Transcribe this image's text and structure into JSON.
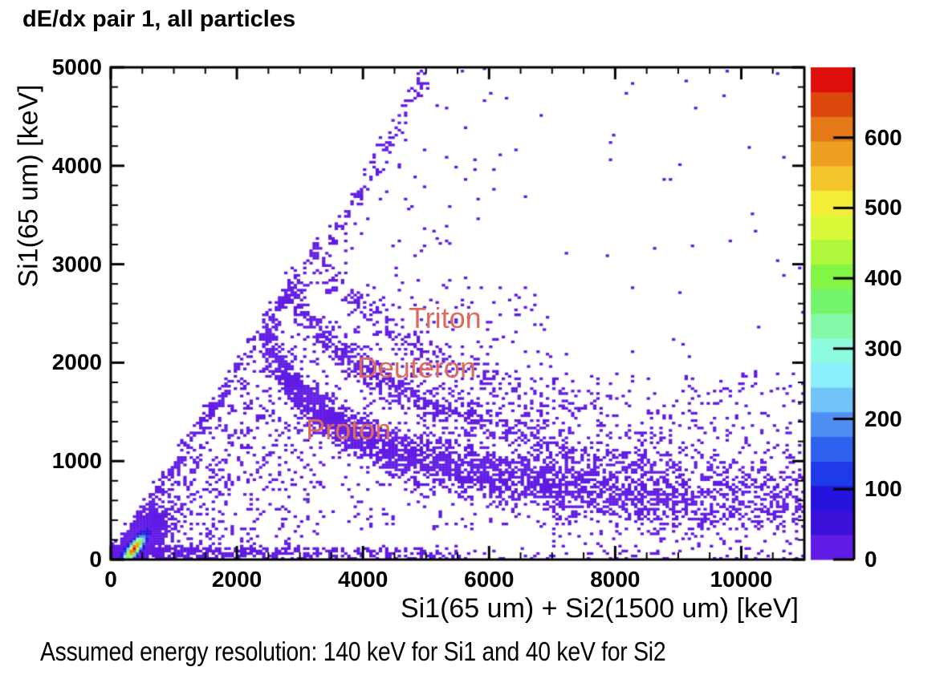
{
  "chart_data": {
    "type": "heatmap",
    "title": "dE/dx pair 1, all particles",
    "xlabel": "Si1(65 um) + Si2(1500 um) [keV]",
    "ylabel": "Si1(65 um) [keV]",
    "footnote": "Assumed energy resolution: 140 keV for Si1 and 40 keV for Si2",
    "xlim": [
      0,
      11000
    ],
    "ylim": [
      0,
      5000
    ],
    "zlim": [
      0,
      700
    ],
    "x_major_ticks": [
      0,
      2000,
      4000,
      6000,
      8000,
      10000
    ],
    "x_minor_step": 500,
    "y_major_ticks": [
      0,
      1000,
      2000,
      3000,
      4000,
      5000
    ],
    "y_minor_step": 200,
    "colorbar_ticks": [
      0,
      100,
      200,
      300,
      400,
      500,
      600
    ],
    "bin_kev": [
      50,
      25
    ],
    "grid": false,
    "legend_position": "right-colorbar",
    "palette": [
      "#601be4",
      "#3b10d9",
      "#2413dd",
      "#1f3ae8",
      "#2e62ee",
      "#4f8ef2",
      "#6fc3f7",
      "#8aeefb",
      "#8dfbdd",
      "#86f9a8",
      "#74f46a",
      "#83f544",
      "#aef73c",
      "#d9f838",
      "#f5ee38",
      "#f3c72c",
      "#eda021",
      "#e57917",
      "#dc470e",
      "#de0f0b"
    ],
    "annotation_color": "#dd6a5a",
    "annotations": [
      {
        "id": "triton",
        "label": "Triton",
        "x": 5300,
        "y": 2450
      },
      {
        "id": "deuteron",
        "label": "Deuteron",
        "x": 4850,
        "y": 1950
      },
      {
        "id": "proton",
        "label": "Proton",
        "x": 3770,
        "y": 1320
      }
    ],
    "bands": [
      {
        "name": "proton-locus",
        "n": 2700,
        "sigma": [
          110,
          170
        ],
        "xjitter": 45,
        "ridge": [
          [
            2450,
            2330
          ],
          [
            2650,
            2000
          ],
          [
            2900,
            1760
          ],
          [
            3200,
            1560
          ],
          [
            3600,
            1370
          ],
          [
            4000,
            1230
          ],
          [
            4500,
            1100
          ],
          [
            5000,
            1010
          ],
          [
            5500,
            940
          ],
          [
            6000,
            880
          ],
          [
            6500,
            825
          ],
          [
            7000,
            775
          ],
          [
            7500,
            725
          ],
          [
            8000,
            685
          ],
          [
            8500,
            650
          ],
          [
            9000,
            620
          ],
          [
            9500,
            595
          ],
          [
            10000,
            570
          ],
          [
            10500,
            550
          ],
          [
            11000,
            530
          ]
        ],
        "weights": [
          55,
          75,
          100,
          120,
          130,
          130,
          122,
          115,
          110,
          105,
          100,
          95,
          88,
          75,
          62,
          50,
          40,
          32,
          26
        ]
      },
      {
        "name": "deuteron-locus",
        "n": 800,
        "sigma": [
          95,
          150
        ],
        "xjitter": 45,
        "ridge": [
          [
            2850,
            2780
          ],
          [
            3100,
            2480
          ],
          [
            3450,
            2220
          ],
          [
            3850,
            2000
          ],
          [
            4300,
            1810
          ],
          [
            4800,
            1650
          ],
          [
            5400,
            1500
          ],
          [
            6000,
            1370
          ],
          [
            6700,
            1250
          ],
          [
            7400,
            1140
          ],
          [
            8100,
            1050
          ],
          [
            8800,
            975
          ],
          [
            9500,
            915
          ],
          [
            10200,
            865
          ],
          [
            11000,
            820
          ]
        ],
        "weights": [
          50,
          65,
          75,
          80,
          80,
          75,
          70,
          64,
          54,
          44,
          34,
          27,
          21,
          16
        ]
      },
      {
        "name": "triton-locus",
        "n": 340,
        "sigma": [
          100,
          160
        ],
        "xjitter": 45,
        "ridge": [
          [
            3250,
            3080
          ],
          [
            3600,
            2780
          ],
          [
            4000,
            2520
          ],
          [
            4500,
            2280
          ],
          [
            5000,
            2100
          ],
          [
            5600,
            1920
          ],
          [
            6300,
            1750
          ],
          [
            7000,
            1610
          ],
          [
            7800,
            1480
          ],
          [
            8600,
            1370
          ],
          [
            9500,
            1270
          ],
          [
            10300,
            1200
          ],
          [
            11000,
            1140
          ]
        ],
        "weights": [
          28,
          36,
          42,
          42,
          40,
          36,
          30,
          24,
          18,
          13,
          10,
          8
        ]
      },
      {
        "name": "stopped-in-si1-diagonal",
        "n": 340,
        "sigma": [
          55,
          55
        ],
        "xjitter": 40,
        "ridge": [
          [
            60,
            40
          ],
          [
            700,
            650
          ],
          [
            1400,
            1330
          ],
          [
            2100,
            2020
          ],
          [
            2700,
            2620
          ],
          [
            3300,
            3230
          ]
        ],
        "weights": [
          16,
          14,
          12,
          10,
          8
        ]
      },
      {
        "name": "high-energy-arc",
        "n": 115,
        "sigma": [
          70,
          70
        ],
        "xjitter": 40,
        "ridge": [
          [
            3450,
            3150
          ],
          [
            3800,
            3550
          ],
          [
            4150,
            3950
          ],
          [
            4450,
            4300
          ],
          [
            4700,
            4600
          ],
          [
            4900,
            4850
          ],
          [
            5050,
            5000
          ]
        ],
        "weights": [
          3,
          3,
          2.5,
          2,
          1.5,
          1
        ]
      }
    ],
    "scatter_regions": [
      {
        "name": "origin-blob",
        "type": "blob",
        "cx": 420,
        "cy": 185,
        "dirx": 1,
        "diry": 0.55,
        "smaj": 270,
        "smin": 85,
        "n": 1500
      },
      {
        "name": "bottom-strip",
        "type": "box",
        "x0": 0,
        "x1": 5500,
        "y0": 0,
        "y1": 130,
        "n": 650,
        "xbias": 2.2
      },
      {
        "name": "bottom-strip-right",
        "type": "box",
        "x0": 5500,
        "x1": 11000,
        "y0": 0,
        "y1": 110,
        "n": 60
      },
      {
        "name": "left-fan",
        "type": "fan",
        "x0": 400,
        "x1": 3400,
        "y0": 70,
        "p": 1.2,
        "slope": 0.93,
        "n": 540
      },
      {
        "name": "left-flank",
        "type": "box",
        "x0": 1500,
        "x1": 3050,
        "y0": 700,
        "y1": 3150,
        "n": 240,
        "below_diagonal": true
      },
      {
        "name": "mid-scatter-low",
        "type": "box",
        "x0": 3500,
        "x1": 7000,
        "y0": 300,
        "y1": 1800,
        "n": 260
      },
      {
        "name": "mid-scatter-high",
        "type": "box",
        "x0": 3500,
        "x1": 7000,
        "y0": 1800,
        "y1": 2800,
        "n": 120
      },
      {
        "name": "right-diffuse-core",
        "type": "box",
        "x0": 7000,
        "x1": 11000,
        "y0": 350,
        "y1": 1100,
        "n": 400
      },
      {
        "name": "right-diffuse-upper",
        "type": "box",
        "x0": 7000,
        "x1": 11000,
        "y0": 1100,
        "y1": 1900,
        "n": 160
      },
      {
        "name": "right-diffuse-lower",
        "type": "box",
        "x0": 7000,
        "x1": 11000,
        "y0": 120,
        "y1": 350,
        "n": 60
      },
      {
        "name": "top-sparse",
        "type": "box",
        "x0": 3500,
        "x1": 6300,
        "y0": 2600,
        "y1": 5000,
        "n": 70,
        "below_diagonal": true
      },
      {
        "name": "plot-noise",
        "type": "box",
        "x0": 200,
        "x1": 11000,
        "y0": 0,
        "y1": 5000,
        "n": 150,
        "below_diagonal": true
      }
    ],
    "hotspot": {
      "name": "origin-peak",
      "cx": 370,
      "cy": 110,
      "dirx": 1,
      "diry": 0.75,
      "smaj": 130,
      "smin": 42,
      "amplitude": 680
    }
  }
}
